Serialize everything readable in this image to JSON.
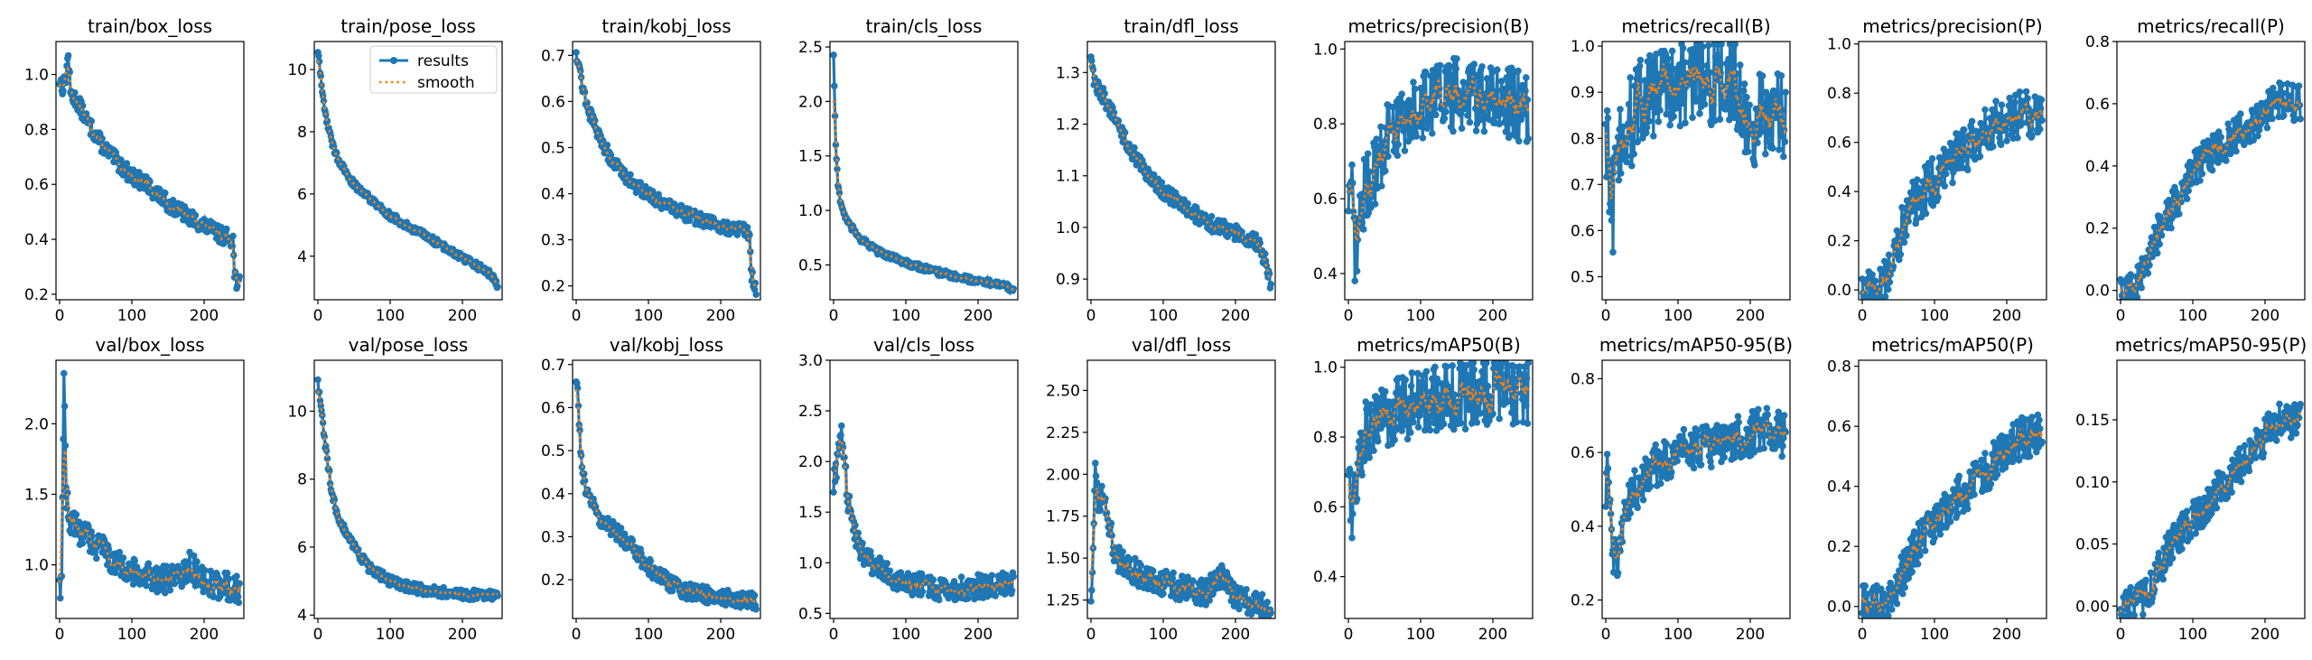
{
  "chart_data": [
    {
      "type": "line",
      "title": "train/box_loss",
      "xlim": [
        -5,
        255
      ],
      "ylim": [
        0.18,
        1.12
      ],
      "xticks": [
        0,
        100,
        200
      ],
      "yticks": [
        0.2,
        0.4,
        0.6,
        0.8,
        1.0
      ],
      "yprec": 1,
      "xlabel": "",
      "ylabel": "",
      "anchors": [
        [
          0,
          0.98
        ],
        [
          5,
          0.95
        ],
        [
          10,
          1.02
        ],
        [
          12,
          1.08
        ],
        [
          15,
          0.93
        ],
        [
          25,
          0.9
        ],
        [
          40,
          0.82
        ],
        [
          60,
          0.74
        ],
        [
          80,
          0.68
        ],
        [
          100,
          0.63
        ],
        [
          120,
          0.6
        ],
        [
          150,
          0.53
        ],
        [
          180,
          0.48
        ],
        [
          200,
          0.45
        ],
        [
          220,
          0.42
        ],
        [
          240,
          0.4
        ],
        [
          242,
          0.27
        ],
        [
          245,
          0.25
        ],
        [
          249,
          0.24
        ]
      ],
      "noise": 0.03
    },
    {
      "type": "line",
      "title": "train/pose_loss",
      "xlim": [
        -5,
        255
      ],
      "ylim": [
        2.6,
        10.9
      ],
      "xticks": [
        0,
        100,
        200
      ],
      "yticks": [
        4,
        6,
        8,
        10
      ],
      "yprec": 0,
      "xlabel": "",
      "ylabel": "",
      "anchors": [
        [
          0,
          10.6
        ],
        [
          5,
          9.5
        ],
        [
          10,
          8.6
        ],
        [
          20,
          7.6
        ],
        [
          30,
          7.0
        ],
        [
          50,
          6.3
        ],
        [
          80,
          5.7
        ],
        [
          100,
          5.3
        ],
        [
          130,
          4.9
        ],
        [
          160,
          4.5
        ],
        [
          190,
          4.1
        ],
        [
          220,
          3.7
        ],
        [
          240,
          3.4
        ],
        [
          249,
          3.0
        ]
      ],
      "noise": 0.12,
      "legend": [
        "results",
        "smooth"
      ]
    },
    {
      "type": "line",
      "title": "train/kobj_loss",
      "xlim": [
        -5,
        255
      ],
      "ylim": [
        0.17,
        0.73
      ],
      "xticks": [
        0,
        100,
        200
      ],
      "yticks": [
        0.2,
        0.3,
        0.4,
        0.5,
        0.6,
        0.7
      ],
      "yprec": 1,
      "xlabel": "",
      "ylabel": "",
      "anchors": [
        [
          0,
          0.71
        ],
        [
          5,
          0.67
        ],
        [
          10,
          0.62
        ],
        [
          20,
          0.57
        ],
        [
          30,
          0.53
        ],
        [
          50,
          0.47
        ],
        [
          80,
          0.42
        ],
        [
          100,
          0.4
        ],
        [
          130,
          0.37
        ],
        [
          160,
          0.35
        ],
        [
          200,
          0.33
        ],
        [
          235,
          0.32
        ],
        [
          240,
          0.31
        ],
        [
          243,
          0.22
        ],
        [
          249,
          0.19
        ]
      ],
      "noise": 0.015
    },
    {
      "type": "line",
      "title": "train/cls_loss",
      "xlim": [
        -5,
        255
      ],
      "ylim": [
        0.18,
        2.55
      ],
      "xticks": [
        0,
        100,
        200
      ],
      "yticks": [
        0.5,
        1.0,
        1.5,
        2.0,
        2.5
      ],
      "yprec": 1,
      "xlabel": "",
      "ylabel": "",
      "anchors": [
        [
          0,
          2.43
        ],
        [
          3,
          1.6
        ],
        [
          6,
          1.25
        ],
        [
          10,
          1.05
        ],
        [
          20,
          0.88
        ],
        [
          40,
          0.72
        ],
        [
          60,
          0.63
        ],
        [
          100,
          0.52
        ],
        [
          140,
          0.44
        ],
        [
          180,
          0.38
        ],
        [
          220,
          0.33
        ],
        [
          240,
          0.3
        ],
        [
          249,
          0.26
        ]
      ],
      "noise": 0.03
    },
    {
      "type": "line",
      "title": "train/dfl_loss",
      "xlim": [
        -5,
        255
      ],
      "ylim": [
        0.86,
        1.36
      ],
      "xticks": [
        0,
        100,
        200
      ],
      "yticks": [
        0.9,
        1.0,
        1.1,
        1.2,
        1.3
      ],
      "yprec": 1,
      "xlabel": "",
      "ylabel": "",
      "anchors": [
        [
          0,
          1.33
        ],
        [
          5,
          1.28
        ],
        [
          15,
          1.26
        ],
        [
          30,
          1.22
        ],
        [
          50,
          1.16
        ],
        [
          80,
          1.1
        ],
        [
          100,
          1.07
        ],
        [
          130,
          1.04
        ],
        [
          160,
          1.01
        ],
        [
          200,
          0.99
        ],
        [
          230,
          0.97
        ],
        [
          240,
          0.94
        ],
        [
          249,
          0.89
        ]
      ],
      "noise": 0.015
    },
    {
      "type": "line",
      "title": "metrics/precision(B)",
      "xlim": [
        -5,
        255
      ],
      "ylim": [
        0.33,
        1.02
      ],
      "xticks": [
        0,
        100,
        200
      ],
      "yticks": [
        0.4,
        0.6,
        0.8,
        1.0
      ],
      "yprec": 1,
      "xlabel": "",
      "ylabel": "",
      "anchors": [
        [
          0,
          0.55
        ],
        [
          5,
          0.6
        ],
        [
          10,
          0.45
        ],
        [
          20,
          0.6
        ],
        [
          40,
          0.7
        ],
        [
          60,
          0.78
        ],
        [
          80,
          0.82
        ],
        [
          100,
          0.85
        ],
        [
          130,
          0.87
        ],
        [
          160,
          0.88
        ],
        [
          200,
          0.87
        ],
        [
          230,
          0.85
        ],
        [
          249,
          0.83
        ]
      ],
      "noise": 0.1
    },
    {
      "type": "line",
      "title": "metrics/recall(B)",
      "xlim": [
        -5,
        255
      ],
      "ylim": [
        0.45,
        1.01
      ],
      "xticks": [
        0,
        100,
        200
      ],
      "yticks": [
        0.5,
        0.6,
        0.7,
        0.8,
        0.9,
        1.0
      ],
      "yprec": 1,
      "xlabel": "",
      "ylabel": "",
      "anchors": [
        [
          0,
          0.8
        ],
        [
          10,
          0.65
        ],
        [
          20,
          0.8
        ],
        [
          40,
          0.85
        ],
        [
          60,
          0.9
        ],
        [
          100,
          0.92
        ],
        [
          150,
          0.93
        ],
        [
          180,
          0.92
        ],
        [
          190,
          0.84
        ],
        [
          220,
          0.84
        ],
        [
          249,
          0.84
        ]
      ],
      "noise": 0.1
    },
    {
      "type": "line",
      "title": "metrics/precision(P)",
      "xlim": [
        -5,
        255
      ],
      "ylim": [
        -0.04,
        1.01
      ],
      "xticks": [
        0,
        100,
        200
      ],
      "yticks": [
        0.0,
        0.2,
        0.4,
        0.6,
        0.8,
        1.0
      ],
      "yprec": 1,
      "xlabel": "",
      "ylabel": "",
      "anchors": [
        [
          0,
          0.0
        ],
        [
          25,
          0.0
        ],
        [
          35,
          0.05
        ],
        [
          50,
          0.2
        ],
        [
          70,
          0.35
        ],
        [
          100,
          0.45
        ],
        [
          130,
          0.55
        ],
        [
          160,
          0.62
        ],
        [
          200,
          0.7
        ],
        [
          230,
          0.72
        ],
        [
          249,
          0.7
        ]
      ],
      "noise": 0.1
    },
    {
      "type": "line",
      "title": "metrics/recall(P)",
      "xlim": [
        -5,
        255
      ],
      "ylim": [
        -0.03,
        0.8
      ],
      "xticks": [
        0,
        100,
        200
      ],
      "yticks": [
        0.0,
        0.2,
        0.4,
        0.6,
        0.8
      ],
      "yprec": 1,
      "xlabel": "",
      "ylabel": "",
      "anchors": [
        [
          0,
          0.0
        ],
        [
          15,
          0.0
        ],
        [
          25,
          0.03
        ],
        [
          40,
          0.12
        ],
        [
          60,
          0.22
        ],
        [
          80,
          0.3
        ],
        [
          100,
          0.38
        ],
        [
          130,
          0.45
        ],
        [
          160,
          0.5
        ],
        [
          190,
          0.55
        ],
        [
          220,
          0.62
        ],
        [
          249,
          0.6
        ]
      ],
      "noise": 0.06
    },
    {
      "type": "line",
      "title": "val/box_loss",
      "xlim": [
        -5,
        255
      ],
      "ylim": [
        0.62,
        2.45
      ],
      "xticks": [
        0,
        100,
        200
      ],
      "yticks": [
        1.0,
        1.5,
        2.0
      ],
      "yprec": 1,
      "xlabel": "",
      "ylabel": "",
      "anchors": [
        [
          0,
          0.82
        ],
        [
          3,
          0.95
        ],
        [
          6,
          2.38
        ],
        [
          9,
          1.5
        ],
        [
          15,
          1.3
        ],
        [
          25,
          1.25
        ],
        [
          40,
          1.2
        ],
        [
          60,
          1.1
        ],
        [
          80,
          1.0
        ],
        [
          100,
          0.95
        ],
        [
          130,
          0.9
        ],
        [
          160,
          0.9
        ],
        [
          180,
          1.0
        ],
        [
          200,
          0.88
        ],
        [
          230,
          0.85
        ],
        [
          249,
          0.82
        ]
      ],
      "noise": 0.1
    },
    {
      "type": "line",
      "title": "val/pose_loss",
      "xlim": [
        -5,
        255
      ],
      "ylim": [
        3.9,
        11.5
      ],
      "xticks": [
        0,
        100,
        200
      ],
      "yticks": [
        4,
        6,
        8,
        10
      ],
      "yprec": 0,
      "xlabel": "",
      "ylabel": "",
      "anchors": [
        [
          0,
          10.8
        ],
        [
          5,
          10.0
        ],
        [
          10,
          9.0
        ],
        [
          20,
          7.5
        ],
        [
          30,
          6.8
        ],
        [
          50,
          6.0
        ],
        [
          70,
          5.4
        ],
        [
          100,
          5.0
        ],
        [
          130,
          4.8
        ],
        [
          160,
          4.7
        ],
        [
          200,
          4.6
        ],
        [
          249,
          4.6
        ]
      ],
      "noise": 0.15
    },
    {
      "type": "line",
      "title": "val/kobj_loss",
      "xlim": [
        -5,
        255
      ],
      "ylim": [
        0.11,
        0.71
      ],
      "xticks": [
        0,
        100,
        200
      ],
      "yticks": [
        0.2,
        0.3,
        0.4,
        0.5,
        0.6,
        0.7
      ],
      "yprec": 1,
      "xlabel": "",
      "ylabel": "",
      "anchors": [
        [
          0,
          0.68
        ],
        [
          3,
          0.6
        ],
        [
          8,
          0.45
        ],
        [
          15,
          0.4
        ],
        [
          30,
          0.35
        ],
        [
          50,
          0.32
        ],
        [
          80,
          0.27
        ],
        [
          100,
          0.23
        ],
        [
          130,
          0.19
        ],
        [
          160,
          0.17
        ],
        [
          200,
          0.16
        ],
        [
          249,
          0.15
        ]
      ],
      "noise": 0.02
    },
    {
      "type": "line",
      "title": "val/cls_loss",
      "xlim": [
        -5,
        255
      ],
      "ylim": [
        0.45,
        3.0
      ],
      "xticks": [
        0,
        100,
        200
      ],
      "yticks": [
        0.5,
        1.0,
        1.5,
        2.0,
        2.5,
        3.0
      ],
      "yprec": 1,
      "xlabel": "",
      "ylabel": "",
      "anchors": [
        [
          0,
          1.8
        ],
        [
          5,
          2.0
        ],
        [
          10,
          2.3
        ],
        [
          15,
          2.0
        ],
        [
          20,
          1.6
        ],
        [
          30,
          1.3
        ],
        [
          40,
          1.1
        ],
        [
          60,
          0.95
        ],
        [
          80,
          0.85
        ],
        [
          100,
          0.8
        ],
        [
          140,
          0.75
        ],
        [
          180,
          0.75
        ],
        [
          220,
          0.78
        ],
        [
          249,
          0.82
        ]
      ],
      "noise": 0.12
    },
    {
      "type": "line",
      "title": "val/dfl_loss",
      "xlim": [
        -5,
        255
      ],
      "ylim": [
        1.14,
        2.68
      ],
      "xticks": [
        0,
        100,
        200
      ],
      "yticks": [
        1.25,
        1.5,
        1.75,
        2.0,
        2.25,
        2.5
      ],
      "yprec": 2,
      "xlabel": "",
      "ylabel": "",
      "anchors": [
        [
          0,
          1.3
        ],
        [
          3,
          1.5
        ],
        [
          6,
          2.0
        ],
        [
          10,
          1.8
        ],
        [
          15,
          1.9
        ],
        [
          25,
          1.7
        ],
        [
          35,
          1.5
        ],
        [
          50,
          1.45
        ],
        [
          70,
          1.4
        ],
        [
          100,
          1.35
        ],
        [
          130,
          1.32
        ],
        [
          160,
          1.3
        ],
        [
          180,
          1.4
        ],
        [
          200,
          1.25
        ],
        [
          230,
          1.22
        ],
        [
          249,
          1.2
        ]
      ],
      "noise": 0.08
    },
    {
      "type": "line",
      "title": "metrics/mAP50(B)",
      "xlim": [
        -5,
        255
      ],
      "ylim": [
        0.28,
        1.02
      ],
      "xticks": [
        0,
        100,
        200
      ],
      "yticks": [
        0.4,
        0.6,
        0.8,
        1.0
      ],
      "yprec": 1,
      "xlabel": "",
      "ylabel": "",
      "anchors": [
        [
          0,
          0.75
        ],
        [
          5,
          0.6
        ],
        [
          10,
          0.7
        ],
        [
          20,
          0.8
        ],
        [
          40,
          0.85
        ],
        [
          60,
          0.88
        ],
        [
          100,
          0.9
        ],
        [
          150,
          0.92
        ],
        [
          200,
          0.93
        ],
        [
          230,
          0.93
        ],
        [
          249,
          0.93
        ]
      ],
      "noise": 0.1
    },
    {
      "type": "line",
      "title": "metrics/mAP50-95(B)",
      "xlim": [
        -5,
        255
      ],
      "ylim": [
        0.15,
        0.85
      ],
      "xticks": [
        0,
        100,
        200
      ],
      "yticks": [
        0.2,
        0.4,
        0.6,
        0.8
      ],
      "yprec": 1,
      "xlabel": "",
      "ylabel": "",
      "anchors": [
        [
          0,
          0.48
        ],
        [
          3,
          0.6
        ],
        [
          8,
          0.35
        ],
        [
          15,
          0.3
        ],
        [
          25,
          0.42
        ],
        [
          40,
          0.5
        ],
        [
          60,
          0.55
        ],
        [
          100,
          0.6
        ],
        [
          150,
          0.62
        ],
        [
          200,
          0.65
        ],
        [
          230,
          0.67
        ],
        [
          249,
          0.64
        ]
      ],
      "noise": 0.06
    },
    {
      "type": "line",
      "title": "metrics/mAP50(P)",
      "xlim": [
        -5,
        255
      ],
      "ylim": [
        -0.04,
        0.82
      ],
      "xticks": [
        0,
        100,
        200
      ],
      "yticks": [
        0.0,
        0.2,
        0.4,
        0.6,
        0.8
      ],
      "yprec": 1,
      "xlabel": "",
      "ylabel": "",
      "anchors": [
        [
          0,
          0.0
        ],
        [
          25,
          0.0
        ],
        [
          35,
          0.02
        ],
        [
          50,
          0.08
        ],
        [
          70,
          0.18
        ],
        [
          100,
          0.28
        ],
        [
          130,
          0.36
        ],
        [
          160,
          0.42
        ],
        [
          190,
          0.5
        ],
        [
          220,
          0.56
        ],
        [
          249,
          0.58
        ]
      ],
      "noise": 0.07
    },
    {
      "type": "line",
      "title": "metrics/mAP50-95(P)",
      "xlim": [
        -5,
        255
      ],
      "ylim": [
        -0.01,
        0.198
      ],
      "xticks": [
        0,
        100,
        200
      ],
      "yticks": [
        0.0,
        0.05,
        0.1,
        0.15
      ],
      "yprec": 2,
      "xlabel": "",
      "ylabel": "",
      "anchors": [
        [
          0,
          0.0
        ],
        [
          20,
          0.0
        ],
        [
          30,
          0.005
        ],
        [
          50,
          0.025
        ],
        [
          70,
          0.05
        ],
        [
          100,
          0.07
        ],
        [
          130,
          0.09
        ],
        [
          160,
          0.11
        ],
        [
          190,
          0.13
        ],
        [
          220,
          0.15
        ],
        [
          249,
          0.15
        ]
      ],
      "noise": 0.015
    }
  ],
  "legend": {
    "results": "results",
    "smooth": "smooth"
  },
  "colors": {
    "results": "#1f77b4",
    "smooth": "#ff7f0e"
  }
}
